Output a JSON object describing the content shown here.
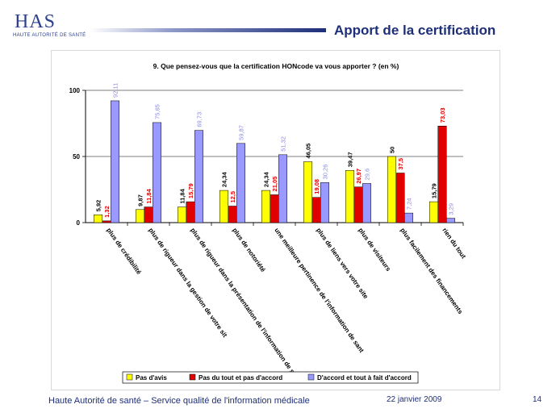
{
  "header": {
    "logo_text": "HAS",
    "logo_subtitle": "HAUTE AUTORITÉ DE SANTÉ",
    "title": "Apport de la certification"
  },
  "chart_data": {
    "type": "bar",
    "title": "9. Que pensez-vous que la certification HONcode va vous apporter ? (en %)",
    "categories": [
      "plus de crédibilité",
      "plus de rigueur dans la gestion de votre sit",
      "plus de rigueur dans la présentation de l'information de san",
      "plus de notoriété",
      "une meilleure pertinence de l'information de sant",
      "plus de liens vers votre site",
      "plus de visiteurs",
      "plus facilement des financements",
      "rien du tout"
    ],
    "series": [
      {
        "name": "Pas d'avis",
        "color": "#ffff00",
        "label_color": "#000000",
        "values": [
          5.92,
          9.87,
          11.84,
          24.34,
          24.34,
          46.05,
          39.47,
          50,
          15.79
        ],
        "labels": [
          "5,92",
          "9,87",
          "11,84",
          "24,34",
          "24,34",
          "46,05",
          "39,47",
          "50",
          "15,79"
        ]
      },
      {
        "name": "Pas du tout et pas d'accord",
        "color": "#e00000",
        "label_color": "#e00000",
        "values": [
          1.32,
          11.84,
          15.79,
          12.5,
          21.05,
          19.08,
          26.97,
          37.5,
          73.03
        ],
        "labels": [
          "1,32",
          "11,84",
          "15,79",
          "12,5",
          "21,05",
          "19,08",
          "26,97",
          "37,5",
          "73,03"
        ]
      },
      {
        "name": "D'accord et tout à fait d'accord",
        "color": "#9999ff",
        "label_color": "#8a8ae0",
        "values": [
          92.11,
          75.65,
          69.73,
          59.87,
          51.32,
          30.26,
          29.6,
          7.24,
          3.29
        ],
        "labels": [
          "92,11",
          "75,65",
          "69,73",
          "59,87",
          "51,32",
          "30,26",
          "29,6",
          "7,24",
          "3,29"
        ]
      }
    ],
    "ylim": [
      0,
      100
    ],
    "yticks": [
      "0",
      "50",
      "100"
    ],
    "grid": true,
    "legend_position": "bottom"
  },
  "footer": {
    "left": "Haute Autorité de santé –  Service qualité de l'information médicale",
    "date": "22 janvier 2009",
    "page": "14"
  }
}
